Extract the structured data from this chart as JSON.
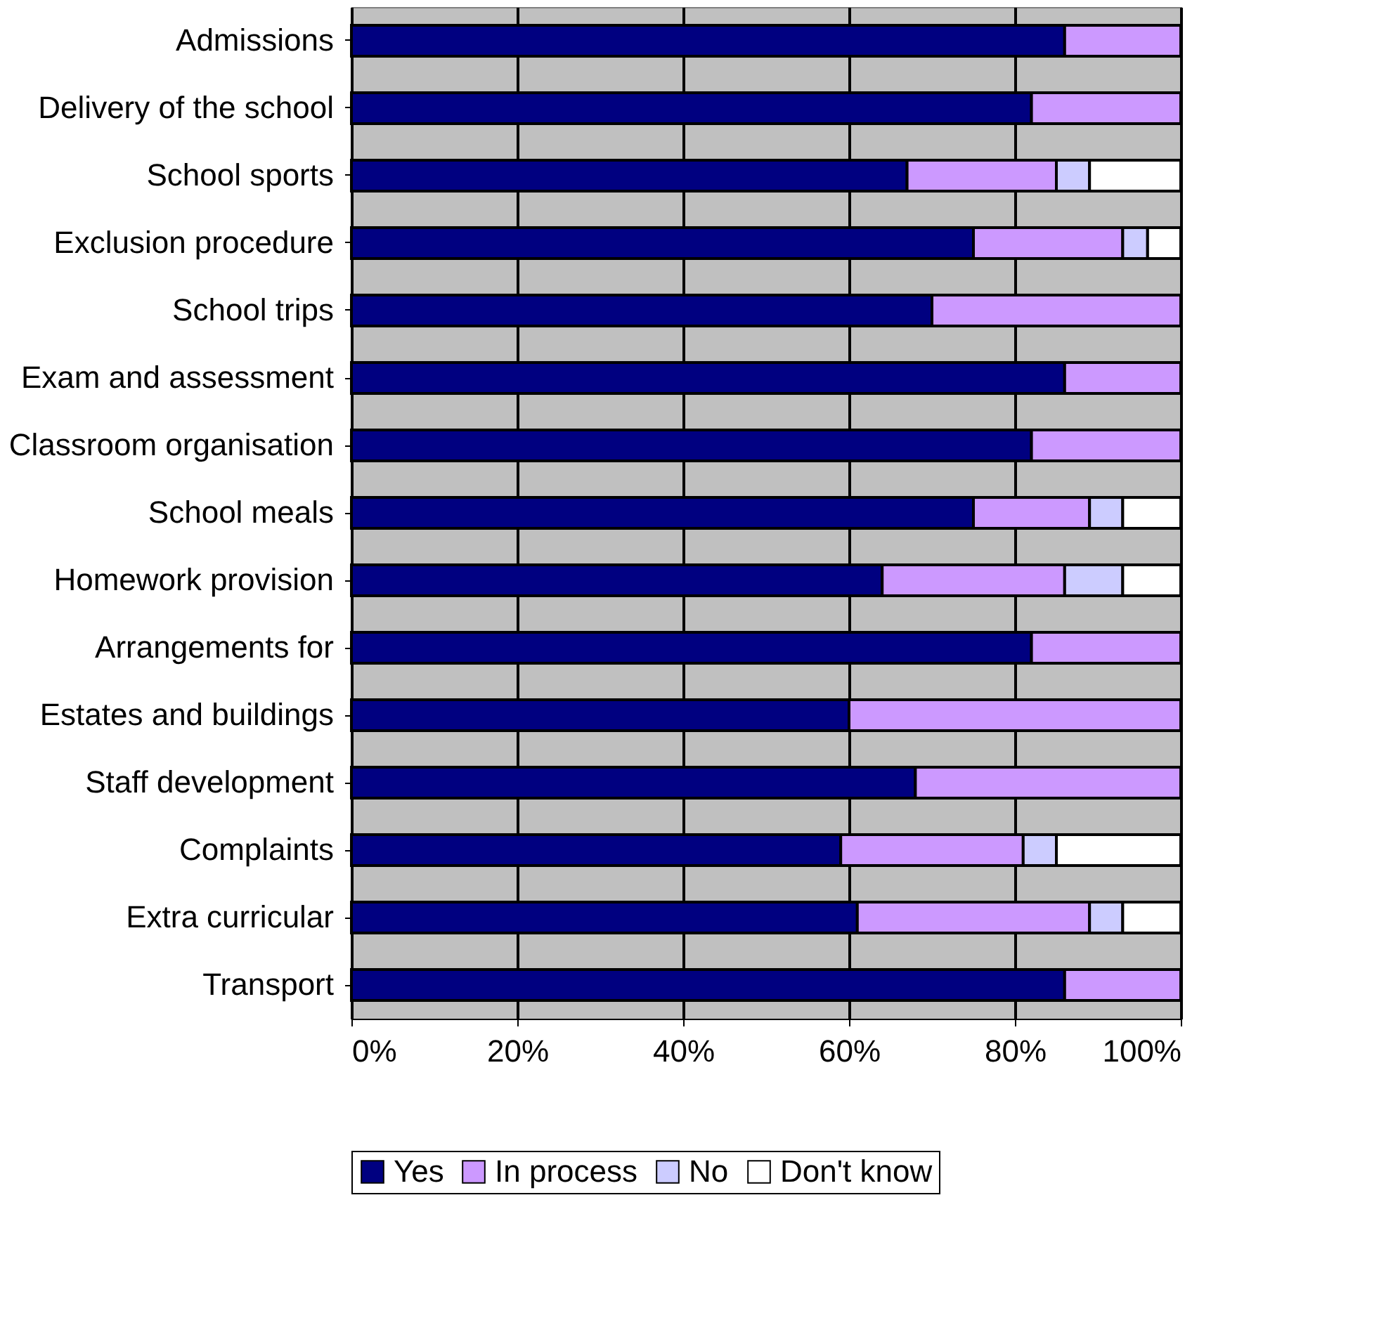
{
  "chart_data": {
    "type": "bar",
    "orientation": "horizontal",
    "stacked": true,
    "categories": [
      "Admissions",
      "Delivery of the school",
      "School sports",
      "Exclusion procedure",
      "School trips",
      "Exam and assessment",
      "Classroom organisation",
      "School meals",
      "Homework provision",
      "Arrangements for",
      "Estates and buildings",
      "Staff development",
      "Complaints",
      "Extra curricular",
      "Transport"
    ],
    "series": [
      {
        "name": "Yes",
        "color": "#000080",
        "values": [
          86,
          82,
          67,
          75,
          70,
          86,
          82,
          75,
          64,
          82,
          60,
          68,
          59,
          61,
          86
        ]
      },
      {
        "name": "In process",
        "color": "#cc99ff",
        "values": [
          14,
          18,
          18,
          18,
          30,
          14,
          18,
          14,
          22,
          18,
          40,
          32,
          22,
          28,
          14
        ]
      },
      {
        "name": "No",
        "color": "#ccccff",
        "values": [
          0,
          0,
          4,
          3,
          0,
          0,
          0,
          4,
          7,
          0,
          0,
          0,
          4,
          4,
          0
        ]
      },
      {
        "name": "Don't know",
        "color": "#ffffff",
        "values": [
          0,
          0,
          11,
          4,
          0,
          0,
          0,
          7,
          7,
          0,
          0,
          0,
          15,
          7,
          0
        ]
      }
    ],
    "xlim": [
      0,
      100
    ],
    "xticks": [
      {
        "value": 0,
        "label": "0%"
      },
      {
        "value": 20,
        "label": "20%"
      },
      {
        "value": 40,
        "label": "40%"
      },
      {
        "value": 60,
        "label": "60%"
      },
      {
        "value": 80,
        "label": "80%"
      },
      {
        "value": 100,
        "label": "100%"
      }
    ],
    "grid": "x",
    "legend": "bottom"
  }
}
